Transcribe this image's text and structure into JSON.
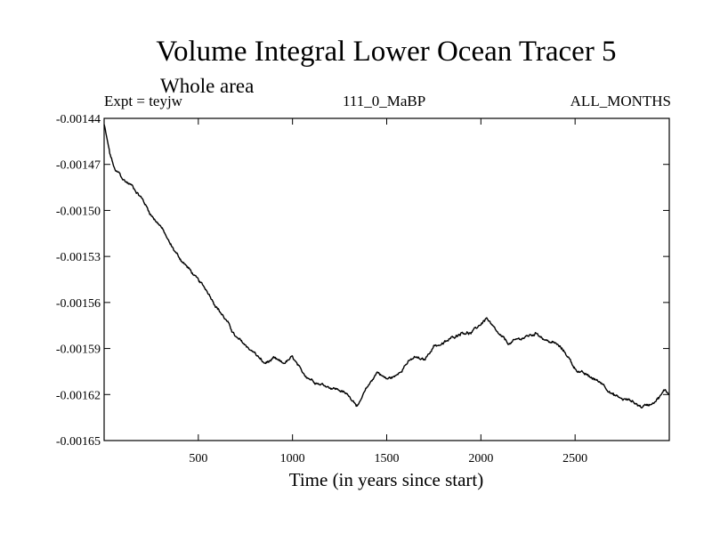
{
  "header": {
    "title": "Volume Integral Lower Ocean Tracer 5",
    "subtitle": "Whole area",
    "experiment": "Expt = teyjw",
    "run_id": "111_0_MaBP",
    "period": "ALL_MONTHS"
  },
  "chart_data": {
    "type": "line",
    "title": "Volume Integral Lower Ocean Tracer 5",
    "subtitle": "Whole area",
    "xlabel": "Time (in years since start)",
    "ylabel": "",
    "xlim": [
      0,
      3000
    ],
    "ylim": [
      -0.00165,
      -0.00144
    ],
    "x_ticks": [
      500,
      1000,
      1500,
      2000,
      2500
    ],
    "x_tick_labels": [
      "500",
      "1000",
      "1500",
      "2000",
      "2500"
    ],
    "y_ticks": [
      -0.00144,
      -0.00147,
      -0.0015,
      -0.00153,
      -0.00156,
      -0.00159,
      -0.00162,
      -0.00165
    ],
    "y_tick_labels": [
      "-0.00144",
      "-0.00147",
      "-0.00150",
      "-0.00153",
      "-0.00156",
      "-0.00159",
      "-0.00162",
      "-0.00165"
    ],
    "grid": false,
    "line_color": "#000000",
    "series": [
      {
        "name": "Lower Ocean Tracer 5",
        "x": [
          0,
          30,
          60,
          80,
          100,
          150,
          200,
          250,
          300,
          350,
          400,
          450,
          500,
          550,
          600,
          650,
          700,
          750,
          800,
          850,
          900,
          950,
          1000,
          1050,
          1100,
          1150,
          1200,
          1250,
          1300,
          1350,
          1400,
          1450,
          1500,
          1550,
          1600,
          1650,
          1700,
          1750,
          1800,
          1850,
          1900,
          1950,
          2000,
          2030,
          2060,
          2100,
          2150,
          2200,
          2250,
          2300,
          2350,
          2400,
          2450,
          2500,
          2550,
          2600,
          2650,
          2700,
          2750,
          2800,
          2850,
          2900,
          2950,
          2980,
          3000
        ],
        "y": [
          -0.001444,
          -0.001463,
          -0.001475,
          -0.001476,
          -0.00148,
          -0.001484,
          -0.001492,
          -0.001503,
          -0.00151,
          -0.001522,
          -0.001531,
          -0.001538,
          -0.001546,
          -0.001553,
          -0.001563,
          -0.001572,
          -0.001583,
          -0.001588,
          -0.001593,
          -0.0016,
          -0.001597,
          -0.0016,
          -0.001596,
          -0.001606,
          -0.00161,
          -0.001613,
          -0.001615,
          -0.001617,
          -0.001621,
          -0.001627,
          -0.001615,
          -0.001605,
          -0.00161,
          -0.001608,
          -0.0016,
          -0.001596,
          -0.001598,
          -0.001588,
          -0.001587,
          -0.001583,
          -0.001579,
          -0.00158,
          -0.001574,
          -0.00157,
          -0.001576,
          -0.001582,
          -0.001587,
          -0.001584,
          -0.001582,
          -0.00158,
          -0.001585,
          -0.001587,
          -0.001593,
          -0.001603,
          -0.001607,
          -0.00161,
          -0.001613,
          -0.00162,
          -0.001623,
          -0.001624,
          -0.001628,
          -0.001626,
          -0.001621,
          -0.001617,
          -0.00162
        ]
      }
    ]
  }
}
